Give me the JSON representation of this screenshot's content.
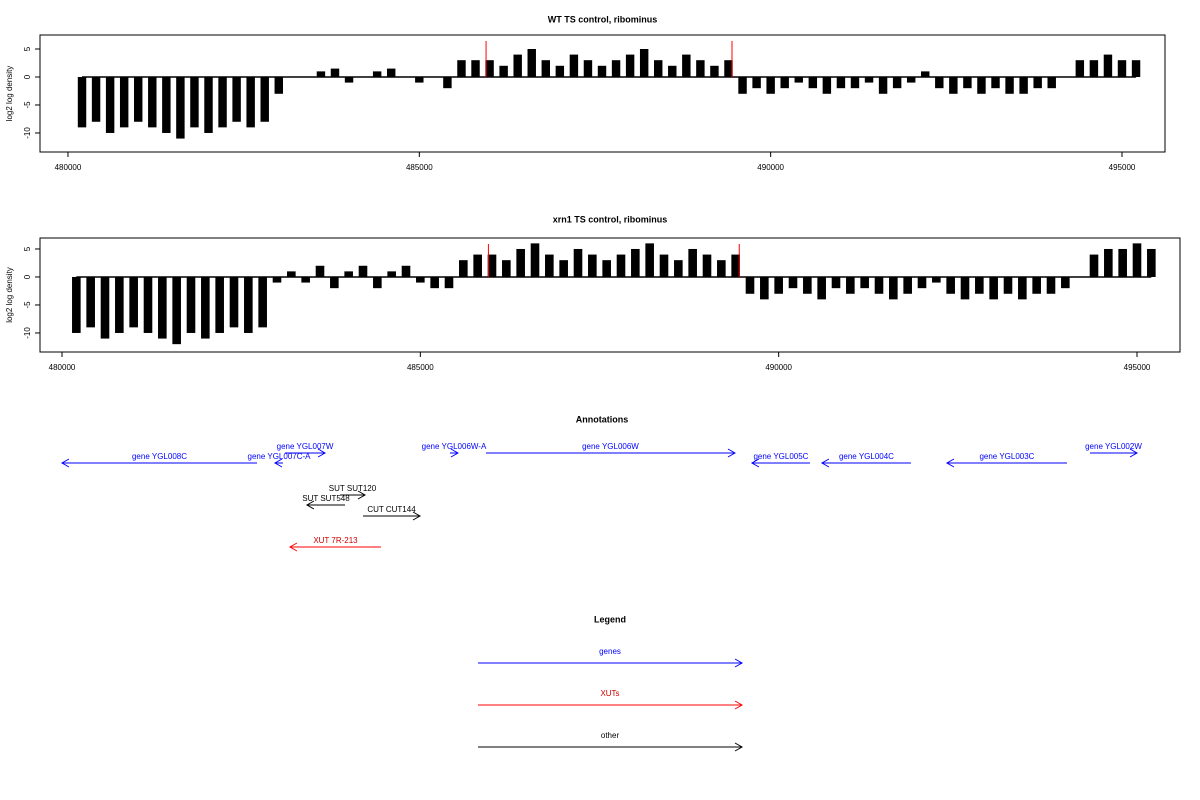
{
  "chart_data": [
    {
      "type": "bar",
      "title": "WT TS control, ribominus",
      "ylabel": "log2 log density",
      "color": "#000000",
      "marker_color": "#ff0000",
      "xlim": [
        479602,
        495612
      ],
      "ylim": [
        -13.4,
        7.5
      ],
      "xticks": [
        480000,
        485000,
        490000,
        495000
      ],
      "yticks": [
        -10,
        -5,
        0,
        5
      ],
      "markers": [
        485950,
        489450
      ],
      "x": [
        480200,
        480400,
        480600,
        480800,
        481000,
        481200,
        481400,
        481600,
        481800,
        482000,
        482200,
        482400,
        482600,
        482800,
        483000,
        483200,
        483400,
        483600,
        483800,
        484000,
        484200,
        484400,
        484600,
        484800,
        485000,
        485200,
        485400,
        485600,
        485800,
        486000,
        486200,
        486400,
        486600,
        486800,
        487000,
        487200,
        487400,
        487600,
        487800,
        488000,
        488200,
        488400,
        488600,
        488800,
        489000,
        489200,
        489400,
        489600,
        489800,
        490000,
        490200,
        490400,
        490600,
        490800,
        491000,
        491200,
        491400,
        491600,
        491800,
        492000,
        492200,
        492400,
        492600,
        492800,
        493000,
        493200,
        493400,
        493600,
        493800,
        494000,
        494200,
        494400,
        494600,
        494800,
        495000,
        495200
      ],
      "values": [
        -9,
        -8,
        -10,
        -9,
        -8,
        -9,
        -10,
        -11,
        -9,
        -10,
        -9,
        -8,
        -9,
        -8,
        -3,
        0,
        0,
        1,
        1.5,
        -1,
        0,
        1,
        1.5,
        0,
        -1,
        0,
        -2,
        3,
        3,
        3,
        2,
        4,
        5,
        3,
        2,
        4,
        3,
        2,
        3,
        4,
        5,
        3,
        2,
        4,
        3,
        2,
        3,
        -3,
        -2,
        -3,
        -2,
        -1,
        -2,
        -3,
        -2,
        -2,
        -1,
        -3,
        -2,
        -1,
        1,
        -2,
        -3,
        -2,
        -3,
        -2,
        -3,
        -3,
        -2,
        -2,
        0,
        3,
        3,
        4,
        3,
        3
      ]
    },
    {
      "type": "bar",
      "title": "xrn1 TS control, ribominus",
      "ylabel": "log2 log density",
      "color": "#000000",
      "marker_color": "#ff0000",
      "xlim": [
        479693,
        495600
      ],
      "ylim": [
        -13.4,
        6.96
      ],
      "xticks": [
        480000,
        485000,
        490000,
        495000
      ],
      "yticks": [
        -10,
        -5,
        0,
        5
      ],
      "markers": [
        485950,
        489450
      ],
      "x": [
        480200,
        480400,
        480600,
        480800,
        481000,
        481200,
        481400,
        481600,
        481800,
        482000,
        482200,
        482400,
        482600,
        482800,
        483000,
        483200,
        483400,
        483600,
        483800,
        484000,
        484200,
        484400,
        484600,
        484800,
        485000,
        485200,
        485400,
        485600,
        485800,
        486000,
        486200,
        486400,
        486600,
        486800,
        487000,
        487200,
        487400,
        487600,
        487800,
        488000,
        488200,
        488400,
        488600,
        488800,
        489000,
        489200,
        489400,
        489600,
        489800,
        490000,
        490200,
        490400,
        490600,
        490800,
        491000,
        491200,
        491400,
        491600,
        491800,
        492000,
        492200,
        492400,
        492600,
        492800,
        493000,
        493200,
        493400,
        493600,
        493800,
        494000,
        494200,
        494400,
        494600,
        494800,
        495000,
        495200
      ],
      "values": [
        -10,
        -9,
        -11,
        -10,
        -9,
        -10,
        -11,
        -12,
        -10,
        -11,
        -10,
        -9,
        -10,
        -9,
        -1,
        1,
        -1,
        2,
        -2,
        1,
        2,
        -2,
        1,
        2,
        -1,
        -2,
        -2,
        3,
        4,
        4,
        3,
        5,
        6,
        4,
        3,
        5,
        4,
        3,
        4,
        5,
        6,
        4,
        3,
        5,
        4,
        3,
        4,
        -3,
        -4,
        -3,
        -2,
        -3,
        -4,
        -2,
        -3,
        -2,
        -3,
        -4,
        -3,
        -2,
        -1,
        -3,
        -4,
        -3,
        -4,
        -3,
        -4,
        -3,
        -3,
        -2,
        0,
        4,
        5,
        5,
        6,
        5
      ]
    }
  ],
  "annotations": {
    "title": "Annotations",
    "xlim": [
      479693,
      495600
    ],
    "items": [
      {
        "label": "gene YGL008C",
        "start": 480000,
        "end": 482721,
        "strand": "-",
        "color": "#0000ff"
      },
      {
        "label": "gene YGL007C-A",
        "start": 482972,
        "end": 483084,
        "strand": "-",
        "color": "#0000ff"
      },
      {
        "label": "gene YGL007W",
        "start": 483112,
        "end": 483670,
        "strand": "+",
        "color": "#0000ff"
      },
      {
        "label": "gene YGL006W-A",
        "start": 485414,
        "end": 485525,
        "strand": "+",
        "color": "#0000ff"
      },
      {
        "label": "gene YGL006W",
        "start": 485916,
        "end": 489390,
        "strand": "+",
        "color": "#0000ff"
      },
      {
        "label": "gene YGL005C",
        "start": 489627,
        "end": 490437,
        "strand": "-",
        "color": "#0000ff"
      },
      {
        "label": "gene YGL004C",
        "start": 490604,
        "end": 491846,
        "strand": "-",
        "color": "#0000ff"
      },
      {
        "label": "gene YGL003C",
        "start": 492348,
        "end": 494023,
        "strand": "-",
        "color": "#0000ff"
      },
      {
        "label": "gene YGL002W",
        "start": 494344,
        "end": 495000,
        "strand": "+",
        "color": "#0000ff"
      },
      {
        "label": "SUT SUT120",
        "start": 483879,
        "end": 484228,
        "strand": "+",
        "color": "#000000"
      },
      {
        "label": "SUT SUT548",
        "start": 483418,
        "end": 483949,
        "strand": "-",
        "color": "#000000"
      },
      {
        "label": "CUT CUT144",
        "start": 484200,
        "end": 484995,
        "strand": "+",
        "color": "#000000"
      },
      {
        "label": "XUT 7R-213",
        "start": 483181,
        "end": 484451,
        "strand": "-",
        "color": "#ff0000"
      }
    ]
  },
  "legend": {
    "title": "Legend",
    "items": [
      {
        "label": "genes",
        "color": "#0000ff"
      },
      {
        "label": "XUTs",
        "color": "#ff0000"
      },
      {
        "label": "other",
        "color": "#000000"
      }
    ]
  }
}
